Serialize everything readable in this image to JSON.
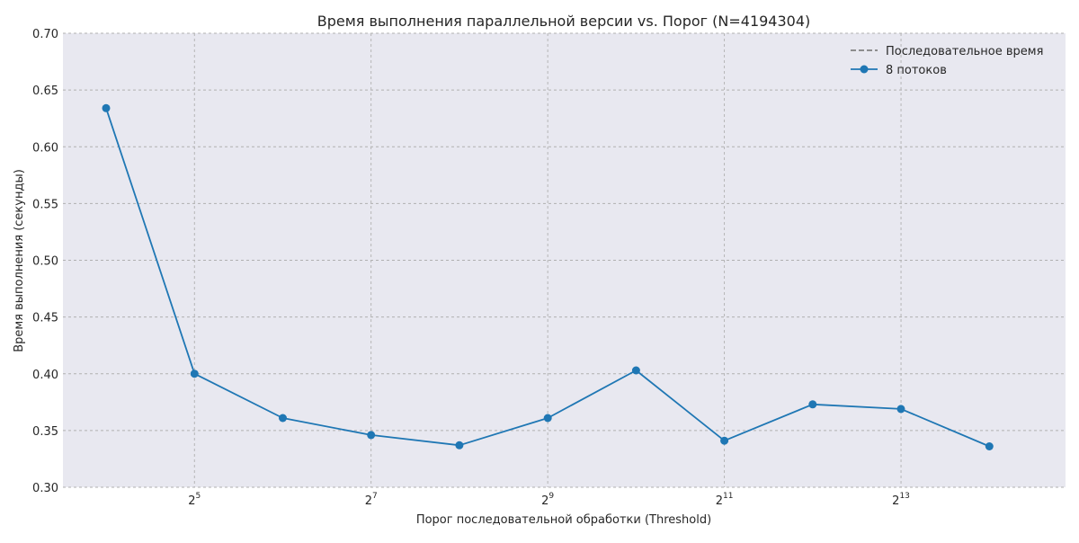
{
  "chart_data": {
    "type": "line",
    "title": "Время выполнения параллельной версии vs. Порог (N=4194304)",
    "xlabel": "Порог последовательной обработки (Threshold)",
    "ylabel": "Время выполнения (секунды)",
    "x_scale": "log2",
    "x": [
      16,
      32,
      64,
      128,
      256,
      512,
      1024,
      2048,
      4096,
      8192,
      16384
    ],
    "xlim": [
      11.4,
      29792
    ],
    "xticks": [
      {
        "value": 32,
        "base": "2",
        "exp": "5"
      },
      {
        "value": 128,
        "base": "2",
        "exp": "7"
      },
      {
        "value": 512,
        "base": "2",
        "exp": "9"
      },
      {
        "value": 2048,
        "base": "2",
        "exp": "11"
      },
      {
        "value": 8192,
        "base": "2",
        "exp": "13"
      }
    ],
    "ylim": [
      0.3,
      0.7
    ],
    "yticks": [
      "0.30",
      "0.35",
      "0.40",
      "0.45",
      "0.50",
      "0.55",
      "0.60",
      "0.65",
      "0.70"
    ],
    "grid": true,
    "legend_position": "top-right",
    "series": [
      {
        "name": "8 потоков",
        "color": "#1f77b4",
        "style": "solid",
        "marker": "circle",
        "values": [
          0.634,
          0.4,
          0.361,
          0.346,
          0.337,
          0.361,
          0.403,
          0.341,
          0.373,
          0.369,
          0.336
        ]
      }
    ],
    "legend": [
      {
        "label": "Последовательное время",
        "color": "#808080",
        "style": "dashed",
        "marker": "none"
      },
      {
        "label": "8 потоков",
        "color": "#1f77b4",
        "style": "solid",
        "marker": "circle"
      }
    ]
  }
}
